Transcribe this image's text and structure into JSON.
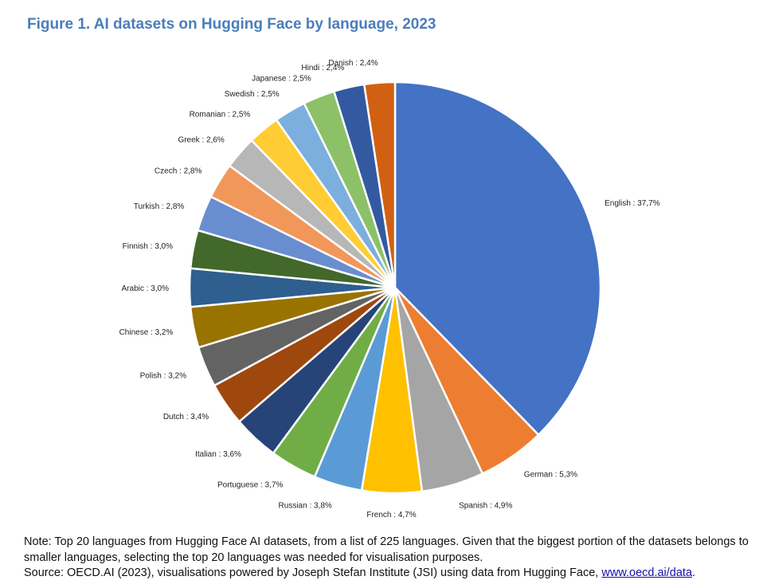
{
  "title": "Figure 1. AI datasets on Hugging Face by language, 2023",
  "note": "Note: Top 20 languages from Hugging Face AI datasets, from a list of 225 languages. Given that the biggest portion of the datasets belongs to smaller languages, selecting the top 20 languages was needed for visualisation purposes.",
  "source_text": "Source: OECD.AI (2023), visualisations powered by Joseph Stefan Institute (JSI) using data from Hugging Face, ",
  "source_link": "www.oecd.ai/data",
  "source_end": ".",
  "chart_data": {
    "type": "pie",
    "title": "Figure 1. AI datasets on Hugging Face by language, 2023",
    "slices": [
      {
        "label": "English : 37,7%",
        "value": 37.7,
        "color": "#4472c4"
      },
      {
        "label": "German : 5,3%",
        "value": 5.3,
        "color": "#ed7d31"
      },
      {
        "label": "Spanish : 4,9%",
        "value": 4.9,
        "color": "#a5a5a5"
      },
      {
        "label": "French : 4,7%",
        "value": 4.7,
        "color": "#ffc000"
      },
      {
        "label": "Russian : 3,8%",
        "value": 3.8,
        "color": "#5b9bd5"
      },
      {
        "label": "Portuguese : 3,7%",
        "value": 3.7,
        "color": "#70ad47"
      },
      {
        "label": "Italian : 3,6%",
        "value": 3.6,
        "color": "#264478"
      },
      {
        "label": "Dutch : 3,4%",
        "value": 3.4,
        "color": "#9e480e"
      },
      {
        "label": "Polish : 3,2%",
        "value": 3.2,
        "color": "#636363"
      },
      {
        "label": "Chinese : 3,2%",
        "value": 3.2,
        "color": "#997300"
      },
      {
        "label": "Arabic : 3,0%",
        "value": 3.0,
        "color": "#2e5f8e"
      },
      {
        "label": "Finnish : 3,0%",
        "value": 3.0,
        "color": "#43682b"
      },
      {
        "label": "Turkish : 2,8%",
        "value": 2.8,
        "color": "#698ed0"
      },
      {
        "label": "Czech : 2,8%",
        "value": 2.8,
        "color": "#f1975a"
      },
      {
        "label": "Greek : 2,6%",
        "value": 2.6,
        "color": "#b7b7b7"
      },
      {
        "label": "Romanian : 2,5%",
        "value": 2.5,
        "color": "#ffcd33"
      },
      {
        "label": "Swedish : 2,5%",
        "value": 2.5,
        "color": "#7cafdd"
      },
      {
        "label": "Japanese : 2,5%",
        "value": 2.5,
        "color": "#8cc168"
      },
      {
        "label": "Hindi : 2,4%",
        "value": 2.4,
        "color": "#335aa1"
      },
      {
        "label": "Danish : 2,4%",
        "value": 2.4,
        "color": "#d26012"
      }
    ]
  }
}
